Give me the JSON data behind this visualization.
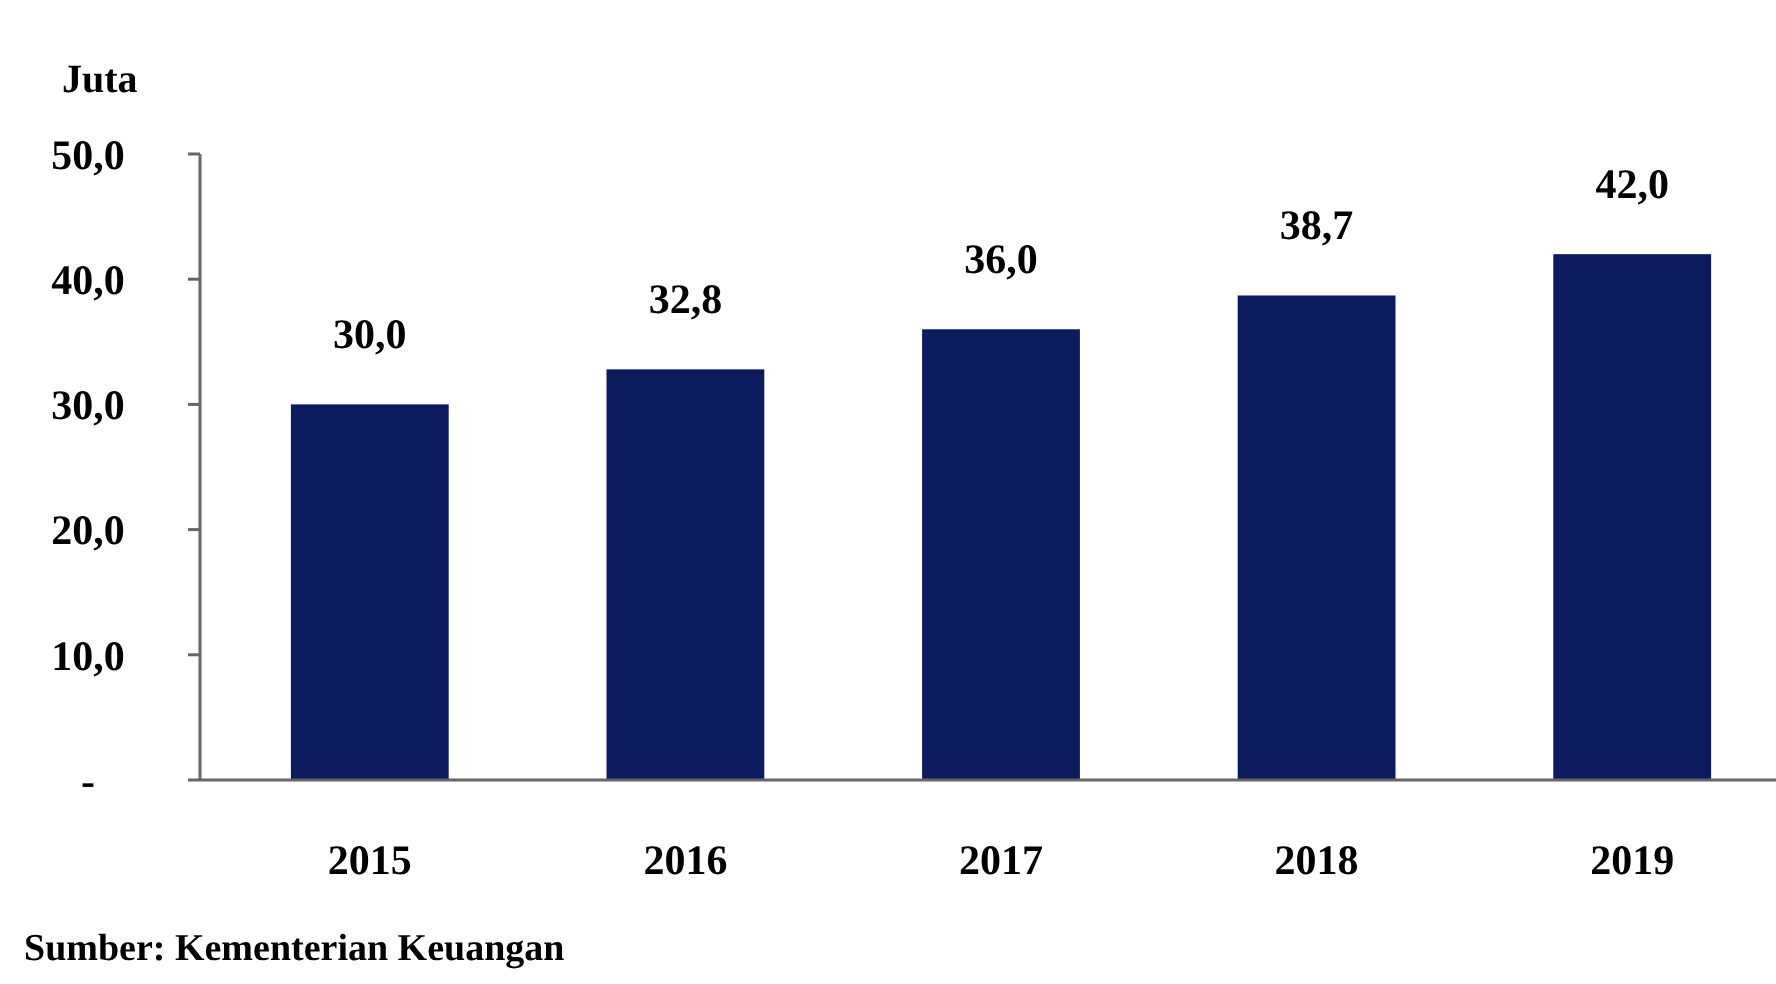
{
  "chart_data": {
    "type": "bar",
    "ylabel": "Juta",
    "categories": [
      "2015",
      "2016",
      "2017",
      "2018",
      "2019"
    ],
    "values": [
      30.0,
      32.8,
      36.0,
      38.7,
      42.0
    ],
    "value_labels": [
      "30,0",
      "32,8",
      "36,0",
      "38,7",
      "42,0"
    ],
    "color": "#0c1a5e",
    "ylim": [
      0,
      50
    ],
    "yticks": [
      {
        "value": 0,
        "label": "-"
      },
      {
        "value": 10,
        "label": "10,0"
      },
      {
        "value": 20,
        "label": "20,0"
      },
      {
        "value": 30,
        "label": "30,0"
      },
      {
        "value": 40,
        "label": "40,0"
      },
      {
        "value": 50,
        "label": "50,0"
      }
    ],
    "grid": false,
    "annotations": [
      "Sumber: Kementerian Keuangan"
    ]
  }
}
